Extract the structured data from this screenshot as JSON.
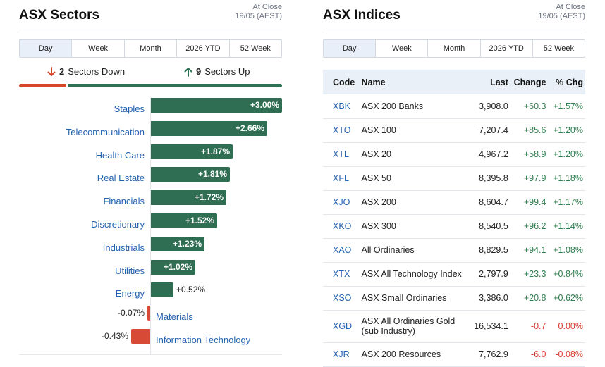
{
  "sectors": {
    "title": "ASX Sectors",
    "as_of_line1": "At Close",
    "as_of_line2": "19/05 (AEST)",
    "tabs": [
      "Day",
      "Week",
      "Month",
      "2026 YTD",
      "52 Week"
    ],
    "active_tab": "Day",
    "summary": {
      "down_count": "2",
      "down_label": "Sectors Down",
      "up_count": "9",
      "up_label": "Sectors Up"
    },
    "colors": {
      "up": "#2f6e53",
      "down": "#d64a36",
      "link": "#2563b0"
    },
    "items": [
      {
        "label": "Staples",
        "value": 3.0,
        "display": "+3.00%"
      },
      {
        "label": "Telecommunication",
        "value": 2.66,
        "display": "+2.66%"
      },
      {
        "label": "Health Care",
        "value": 1.87,
        "display": "+1.87%"
      },
      {
        "label": "Real Estate",
        "value": 1.81,
        "display": "+1.81%"
      },
      {
        "label": "Financials",
        "value": 1.72,
        "display": "+1.72%"
      },
      {
        "label": "Discretionary",
        "value": 1.52,
        "display": "+1.52%"
      },
      {
        "label": "Industrials",
        "value": 1.23,
        "display": "+1.23%"
      },
      {
        "label": "Utilities",
        "value": 1.02,
        "display": "+1.02%"
      },
      {
        "label": "Energy",
        "value": 0.52,
        "display": "+0.52%"
      },
      {
        "label": "Materials",
        "value": -0.07,
        "display": "-0.07%"
      },
      {
        "label": "Information Technology",
        "value": -0.43,
        "display": "-0.43%"
      }
    ]
  },
  "indices": {
    "title": "ASX Indices",
    "as_of_line1": "At Close",
    "as_of_line2": "19/05 (AEST)",
    "tabs": [
      "Day",
      "Week",
      "Month",
      "2026 YTD",
      "52 Week"
    ],
    "active_tab": "Day",
    "columns": [
      "Code",
      "Name",
      "Last",
      "Change",
      "% Chg"
    ],
    "rows": [
      {
        "code": "XBK",
        "name": "ASX 200 Banks",
        "last": "3,908.0",
        "change": "+60.3",
        "pct": "+1.57%",
        "dir": "up"
      },
      {
        "code": "XTO",
        "name": "ASX 100",
        "last": "7,207.4",
        "change": "+85.6",
        "pct": "+1.20%",
        "dir": "up"
      },
      {
        "code": "XTL",
        "name": "ASX 20",
        "last": "4,967.2",
        "change": "+58.9",
        "pct": "+1.20%",
        "dir": "up"
      },
      {
        "code": "XFL",
        "name": "ASX 50",
        "last": "8,395.8",
        "change": "+97.9",
        "pct": "+1.18%",
        "dir": "up"
      },
      {
        "code": "XJO",
        "name": "ASX 200",
        "last": "8,604.7",
        "change": "+99.4",
        "pct": "+1.17%",
        "dir": "up"
      },
      {
        "code": "XKO",
        "name": "ASX 300",
        "last": "8,540.5",
        "change": "+96.2",
        "pct": "+1.14%",
        "dir": "up"
      },
      {
        "code": "XAO",
        "name": "All Ordinaries",
        "last": "8,829.5",
        "change": "+94.1",
        "pct": "+1.08%",
        "dir": "up"
      },
      {
        "code": "XTX",
        "name": "ASX All Technology Index",
        "last": "2,797.9",
        "change": "+23.3",
        "pct": "+0.84%",
        "dir": "up"
      },
      {
        "code": "XSO",
        "name": "ASX Small Ordinaries",
        "last": "3,386.0",
        "change": "+20.8",
        "pct": "+0.62%",
        "dir": "up"
      },
      {
        "code": "XGD",
        "name": "ASX All Ordinaries Gold (sub Industry)",
        "last": "16,534.1",
        "change": "-0.7",
        "pct": "0.00%",
        "dir": "down"
      },
      {
        "code": "XJR",
        "name": "ASX 200 Resources",
        "last": "7,762.9",
        "change": "-6.0",
        "pct": "-0.08%",
        "dir": "down"
      }
    ]
  }
}
